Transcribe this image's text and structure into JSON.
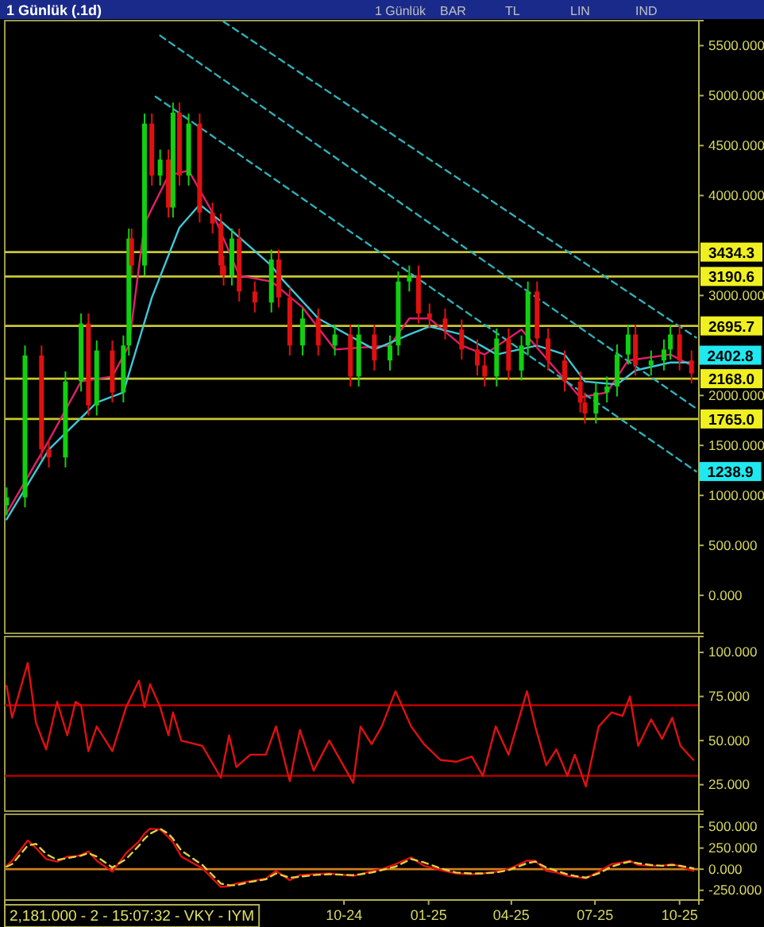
{
  "chart_data": [
    {
      "type": "candlestick",
      "title": "1 Günlük (.1d)",
      "x": [
        "2023-09-30",
        "2023-10-20",
        "2023-11-07",
        "2023-11-15",
        "2023-12-03",
        "2023-12-20",
        "2023-12-28",
        "2024-01-06",
        "2024-01-23",
        "2024-02-04",
        "2024-02-10",
        "2024-02-13",
        "2024-02-27",
        "2024-03-06",
        "2024-03-15",
        "2024-03-24",
        "2024-03-29",
        "2024-04-05",
        "2024-04-15",
        "2024-04-27",
        "2024-05-11",
        "2024-05-20",
        "2024-05-23",
        "2024-06-01",
        "2024-06-09",
        "2024-06-26",
        "2024-07-14",
        "2024-07-22",
        "2024-08-03",
        "2024-08-17",
        "2024-09-03",
        "2024-09-21",
        "2024-10-08",
        "2024-10-17",
        "2024-11-03",
        "2024-11-20",
        "2024-11-29",
        "2024-12-11",
        "2024-12-21",
        "2025-01-02",
        "2025-01-19",
        "2025-02-06",
        "2025-02-23",
        "2025-03-03",
        "2025-03-16",
        "2025-03-29",
        "2025-04-12",
        "2025-04-19",
        "2025-04-29",
        "2025-05-11",
        "2025-05-29",
        "2025-06-15",
        "2025-06-20",
        "2025-07-02",
        "2025-07-14",
        "2025-07-25",
        "2025-08-06",
        "2025-08-14",
        "2025-08-31",
        "2025-09-14",
        "2025-09-21",
        "2025-10-01",
        "2025-10-14"
      ],
      "ohlc": [
        [
          900,
          1080,
          800,
          980
        ],
        [
          980,
          2500,
          880,
          2400
        ],
        [
          2400,
          2500,
          1360,
          1460
        ],
        [
          1460,
          1560,
          1280,
          1380
        ],
        [
          1380,
          2240,
          1280,
          2140
        ],
        [
          2140,
          2820,
          2040,
          2720
        ],
        [
          2720,
          2820,
          1800,
          1900
        ],
        [
          1900,
          2550,
          1800,
          2450
        ],
        [
          2450,
          2550,
          1930,
          2030
        ],
        [
          2030,
          2600,
          1930,
          2500
        ],
        [
          2500,
          3670,
          2400,
          3570
        ],
        [
          3570,
          3670,
          3200,
          3300
        ],
        [
          3300,
          4820,
          3200,
          4720
        ],
        [
          4720,
          4820,
          4100,
          4200
        ],
        [
          4200,
          4460,
          4100,
          4360
        ],
        [
          4360,
          4460,
          3780,
          3880
        ],
        [
          3880,
          4930,
          3780,
          4830
        ],
        [
          4830,
          4930,
          4100,
          4200
        ],
        [
          4200,
          4820,
          4100,
          4720
        ],
        [
          4720,
          4820,
          3730,
          3830
        ],
        [
          3830,
          3930,
          3620,
          3720
        ],
        [
          3720,
          3820,
          3200,
          3300
        ],
        [
          3300,
          3400,
          3100,
          3200
        ],
        [
          3200,
          3670,
          3100,
          3570
        ],
        [
          3570,
          3670,
          2940,
          3040
        ],
        [
          3040,
          3140,
          2830,
          2930
        ],
        [
          2930,
          3460,
          2830,
          3360
        ],
        [
          3360,
          3460,
          2880,
          2980
        ],
        [
          2980,
          3080,
          2400,
          2500
        ],
        [
          2500,
          2870,
          2400,
          2770
        ],
        [
          2770,
          2870,
          2400,
          2500
        ],
        [
          2500,
          2710,
          2400,
          2610
        ],
        [
          2610,
          2710,
          2090,
          2190
        ],
        [
          2190,
          2710,
          2090,
          2610
        ],
        [
          2610,
          2710,
          2250,
          2350
        ],
        [
          2350,
          2600,
          2250,
          2500
        ],
        [
          2500,
          3240,
          2400,
          3140
        ],
        [
          3140,
          3300,
          3040,
          3200
        ],
        [
          3200,
          3300,
          2720,
          2820
        ],
        [
          2820,
          2920,
          2670,
          2770
        ],
        [
          2770,
          2870,
          2560,
          2660
        ],
        [
          2660,
          2760,
          2360,
          2460
        ],
        [
          2460,
          2560,
          2200,
          2300
        ],
        [
          2300,
          2400,
          2090,
          2190
        ],
        [
          2190,
          2670,
          2090,
          2570
        ],
        [
          2570,
          2670,
          2150,
          2250
        ],
        [
          2250,
          2600,
          2150,
          2500
        ],
        [
          2500,
          3140,
          2400,
          3040
        ],
        [
          3040,
          3140,
          2470,
          2570
        ],
        [
          2570,
          2670,
          2250,
          2350
        ],
        [
          2350,
          2450,
          2040,
          2140
        ],
        [
          2140,
          2240,
          1830,
          1930
        ],
        [
          1930,
          2030,
          1720,
          1820
        ],
        [
          1820,
          2130,
          1720,
          2030
        ],
        [
          2030,
          2190,
          1930,
          2090
        ],
        [
          2090,
          2510,
          1990,
          2410
        ],
        [
          2410,
          2710,
          2310,
          2610
        ],
        [
          2610,
          2710,
          2200,
          2300
        ],
        [
          2300,
          2450,
          2200,
          2350
        ],
        [
          2350,
          2560,
          2250,
          2460
        ],
        [
          2460,
          2710,
          2360,
          2610
        ],
        [
          2610,
          2710,
          2250,
          2350
        ],
        [
          2350,
          2450,
          2120,
          2220
        ]
      ],
      "series": [
        {
          "type": "line",
          "color": "#e0206a",
          "x": [
            "2023-09-30",
            "2023-11-15",
            "2023-12-20",
            "2024-01-23",
            "2024-02-10",
            "2024-02-27",
            "2024-03-24",
            "2024-04-15",
            "2024-05-11",
            "2024-06-09",
            "2024-07-14",
            "2024-08-17",
            "2024-09-21",
            "2024-11-20",
            "2024-12-11",
            "2025-01-02",
            "2025-02-06",
            "2025-03-03",
            "2025-04-12",
            "2025-05-11",
            "2025-06-15",
            "2025-07-14",
            "2025-08-06",
            "2025-09-21",
            "2025-10-14"
          ],
          "values": [
            820,
            1550,
            2140,
            2190,
            2500,
            3720,
            4200,
            4250,
            3830,
            3200,
            3140,
            2880,
            2460,
            2500,
            2770,
            2770,
            2500,
            2410,
            2660,
            2350,
            1980,
            2030,
            2350,
            2410,
            2300
          ]
        },
        {
          "type": "line",
          "color": "#40c8d8",
          "x": [
            "2023-09-30",
            "2023-11-15",
            "2024-01-06",
            "2024-02-04",
            "2024-03-06",
            "2024-04-05",
            "2024-04-27",
            "2024-05-23",
            "2024-07-14",
            "2024-07-22",
            "2024-09-03",
            "2024-11-03",
            "2024-12-11",
            "2025-01-02",
            "2025-02-06",
            "2025-03-16",
            "2025-04-29",
            "2025-05-29",
            "2025-06-20",
            "2025-07-25",
            "2025-08-14",
            "2025-09-21",
            "2025-10-14"
          ],
          "values": [
            760,
            1460,
            1930,
            2030,
            2980,
            3680,
            3910,
            3720,
            3300,
            3200,
            2770,
            2460,
            2610,
            2690,
            2610,
            2410,
            2500,
            2410,
            2140,
            2110,
            2250,
            2330,
            2330
          ]
        },
        {
          "type": "line",
          "color": "#30b0b8",
          "line_style": "dashed",
          "x": [
            "2024-05-23",
            "2025-10-19"
          ],
          "values": [
            5740,
            2580
          ]
        },
        {
          "type": "line",
          "color": "#30b0b8",
          "line_style": "dashed",
          "x": [
            "2024-03-15",
            "2025-10-19"
          ],
          "values": [
            5600,
            1870
          ]
        },
        {
          "type": "line",
          "color": "#30b0b8",
          "line_style": "dashed",
          "x": [
            "2024-03-10",
            "2025-10-19"
          ],
          "values": [
            4990,
            1240
          ]
        }
      ],
      "ref_lines": [
        {
          "axis": "y",
          "value": 3434.3,
          "label": "3434.3",
          "color": "#c8c830"
        },
        {
          "axis": "y",
          "value": 3190.6,
          "label": "3190.6",
          "color": "#c8c830"
        },
        {
          "axis": "y",
          "value": 2695.7,
          "label": "2695.7",
          "color": "#c8c830"
        },
        {
          "axis": "y",
          "value": 2168.0,
          "label": "2168.0",
          "color": "#c8c830"
        },
        {
          "axis": "y",
          "value": 1765.0,
          "label": "1765.0",
          "color": "#c8c830"
        }
      ],
      "annotations": [
        "1 Günlük",
        "BAR",
        "TL",
        "LIN",
        "IND",
        {
          "text": "2402.8",
          "x": "2025-10-19",
          "y": 2402.8
        },
        {
          "text": "1238.9",
          "x": "2025-10-19",
          "y": 1238.9
        }
      ],
      "xlim": [
        "2023-09-28",
        "2025-10-22"
      ],
      "ylim": [
        -380,
        5750
      ],
      "yticks": [
        {
          "value": 0,
          "label": "0.000"
        },
        {
          "value": 500,
          "label": "500.000"
        },
        {
          "value": 1000,
          "label": "1000.000"
        },
        {
          "value": 1500,
          "label": "1500.000"
        },
        {
          "value": 2000,
          "label": "2000.000"
        },
        {
          "value": 3000,
          "label": "3000.000"
        },
        {
          "value": 4000,
          "label": "4000.000"
        },
        {
          "value": 4500,
          "label": "4500.000"
        },
        {
          "value": 5000,
          "label": "5000.000"
        },
        {
          "value": 5500,
          "label": "5500.000"
        }
      ],
      "tick_labels": "y"
    },
    {
      "type": "line",
      "x": [
        "2023-09-30",
        "2023-10-06",
        "2023-10-23",
        "2023-11-01",
        "2023-11-12",
        "2023-11-24",
        "2023-12-05",
        "2023-12-14",
        "2023-12-20",
        "2023-12-28",
        "2024-01-06",
        "2024-01-23",
        "2024-02-07",
        "2024-02-21",
        "2024-02-27",
        "2024-03-04",
        "2024-03-15",
        "2024-03-24",
        "2024-03-29",
        "2024-04-07",
        "2024-04-30",
        "2024-05-20",
        "2024-05-29",
        "2024-06-06",
        "2024-06-21",
        "2024-07-08",
        "2024-07-19",
        "2024-08-03",
        "2024-08-14",
        "2024-08-29",
        "2024-09-15",
        "2024-10-11",
        "2024-10-19",
        "2024-10-31",
        "2024-11-11",
        "2024-11-26",
        "2024-12-13",
        "2024-12-27",
        "2025-01-14",
        "2025-01-31",
        "2025-02-17",
        "2025-03-01",
        "2025-03-15",
        "2025-03-29",
        "2025-04-18",
        "2025-04-27",
        "2025-05-09",
        "2025-05-20",
        "2025-06-01",
        "2025-06-09",
        "2025-06-21",
        "2025-07-05",
        "2025-07-19",
        "2025-07-31",
        "2025-08-08",
        "2025-08-17",
        "2025-08-31",
        "2025-09-12",
        "2025-09-23",
        "2025-10-02",
        "2025-10-16"
      ],
      "series": [
        {
          "color": "#e01010",
          "values": [
            81,
            63,
            94,
            60,
            45,
            72,
            53,
            72,
            70,
            44,
            58,
            44,
            69,
            84,
            69,
            82,
            69,
            53,
            66,
            50,
            47,
            29,
            53,
            35,
            42,
            42,
            58,
            27,
            56,
            33,
            50,
            26,
            58,
            48,
            58,
            78,
            58,
            48,
            39,
            38,
            41,
            30,
            58,
            42,
            78,
            58,
            36,
            45,
            30,
            42,
            24,
            58,
            66,
            64,
            75,
            47,
            62,
            51,
            63,
            47,
            39
          ]
        }
      ],
      "ref_lines": [
        {
          "axis": "y",
          "value": 70,
          "color": "#b00000"
        },
        {
          "axis": "y",
          "value": 30,
          "color": "#b00000"
        }
      ],
      "xlim": [
        "2023-09-28",
        "2025-10-22"
      ],
      "ylim": [
        10,
        109
      ],
      "yticks": [
        {
          "value": 25,
          "label": "25.000"
        },
        {
          "value": 50,
          "label": "50.000"
        },
        {
          "value": 75,
          "label": "75.000"
        },
        {
          "value": 100,
          "label": "100.000"
        }
      ],
      "tick_labels": "y"
    },
    {
      "type": "line",
      "x": [
        "2023-09-30",
        "2023-10-06",
        "2023-10-23",
        "2023-11-01",
        "2023-11-12",
        "2023-11-24",
        "2023-12-05",
        "2023-12-14",
        "2023-12-20",
        "2023-12-28",
        "2024-01-06",
        "2024-01-23",
        "2024-02-07",
        "2024-02-21",
        "2024-02-27",
        "2024-03-04",
        "2024-03-15",
        "2024-03-24",
        "2024-03-29",
        "2024-04-07",
        "2024-04-30",
        "2024-05-20",
        "2024-05-29",
        "2024-06-06",
        "2024-06-21",
        "2024-07-08",
        "2024-07-19",
        "2024-08-03",
        "2024-08-14",
        "2024-08-29",
        "2024-09-15",
        "2024-10-11",
        "2024-10-19",
        "2024-10-31",
        "2024-11-11",
        "2024-11-26",
        "2024-12-13",
        "2024-12-27",
        "2025-01-14",
        "2025-01-31",
        "2025-02-17",
        "2025-03-01",
        "2025-03-15",
        "2025-03-29",
        "2025-04-18",
        "2025-04-27",
        "2025-05-09",
        "2025-05-20",
        "2025-06-01",
        "2025-06-09",
        "2025-06-21",
        "2025-07-05",
        "2025-07-19",
        "2025-07-31",
        "2025-08-08",
        "2025-08-17",
        "2025-08-31",
        "2025-09-12",
        "2025-09-23",
        "2025-10-02",
        "2025-10-16"
      ],
      "series": [
        {
          "color": "#e01010",
          "values": [
            40,
            100,
            340,
            250,
            120,
            90,
            150,
            150,
            170,
            210,
            100,
            -30,
            190,
            330,
            420,
            480,
            470,
            380,
            320,
            150,
            10,
            -210,
            -200,
            -170,
            -140,
            -110,
            -20,
            -130,
            -70,
            -60,
            -50,
            -80,
            -60,
            -20,
            0,
            60,
            140,
            40,
            -10,
            -50,
            -60,
            -50,
            -30,
            0,
            100,
            100,
            -20,
            -40,
            -80,
            -90,
            -110,
            -30,
            60,
            80,
            100,
            50,
            40,
            40,
            60,
            30,
            -20
          ]
        },
        {
          "color": "#e0d040",
          "line_style": "dashed",
          "values": [
            30,
            60,
            280,
            300,
            180,
            110,
            130,
            150,
            160,
            190,
            150,
            20,
            120,
            280,
            360,
            420,
            480,
            420,
            360,
            220,
            50,
            -170,
            -190,
            -190,
            -150,
            -120,
            -50,
            -100,
            -90,
            -70,
            -60,
            -70,
            -60,
            -40,
            -10,
            30,
            120,
            80,
            10,
            -40,
            -50,
            -50,
            -40,
            -10,
            70,
            90,
            20,
            -20,
            -60,
            -80,
            -100,
            -50,
            30,
            70,
            90,
            70,
            50,
            40,
            50,
            40,
            10
          ]
        }
      ],
      "ref_lines": [
        {
          "axis": "y",
          "value": 0,
          "color": "#d08020"
        }
      ],
      "annotations": [
        "2,181.000 - 2 - 15:07:32 - VKY - IYM"
      ],
      "xlim": [
        "2023-09-28",
        "2025-10-22"
      ],
      "ylim": [
        -365,
        650
      ],
      "xticks": [
        {
          "value": "2024-10-01",
          "label": "10-24"
        },
        {
          "value": "2025-01-01",
          "label": "01-25"
        },
        {
          "value": "2025-04-01",
          "label": "04-25"
        },
        {
          "value": "2025-07-01",
          "label": "07-25"
        },
        {
          "value": "2025-10-01",
          "label": "10-25"
        }
      ],
      "yticks": [
        {
          "value": -250,
          "label": "-250.000"
        },
        {
          "value": 0,
          "label": "0.000"
        },
        {
          "value": 250,
          "label": "250.000"
        },
        {
          "value": 500,
          "label": "500.000"
        }
      ]
    }
  ]
}
